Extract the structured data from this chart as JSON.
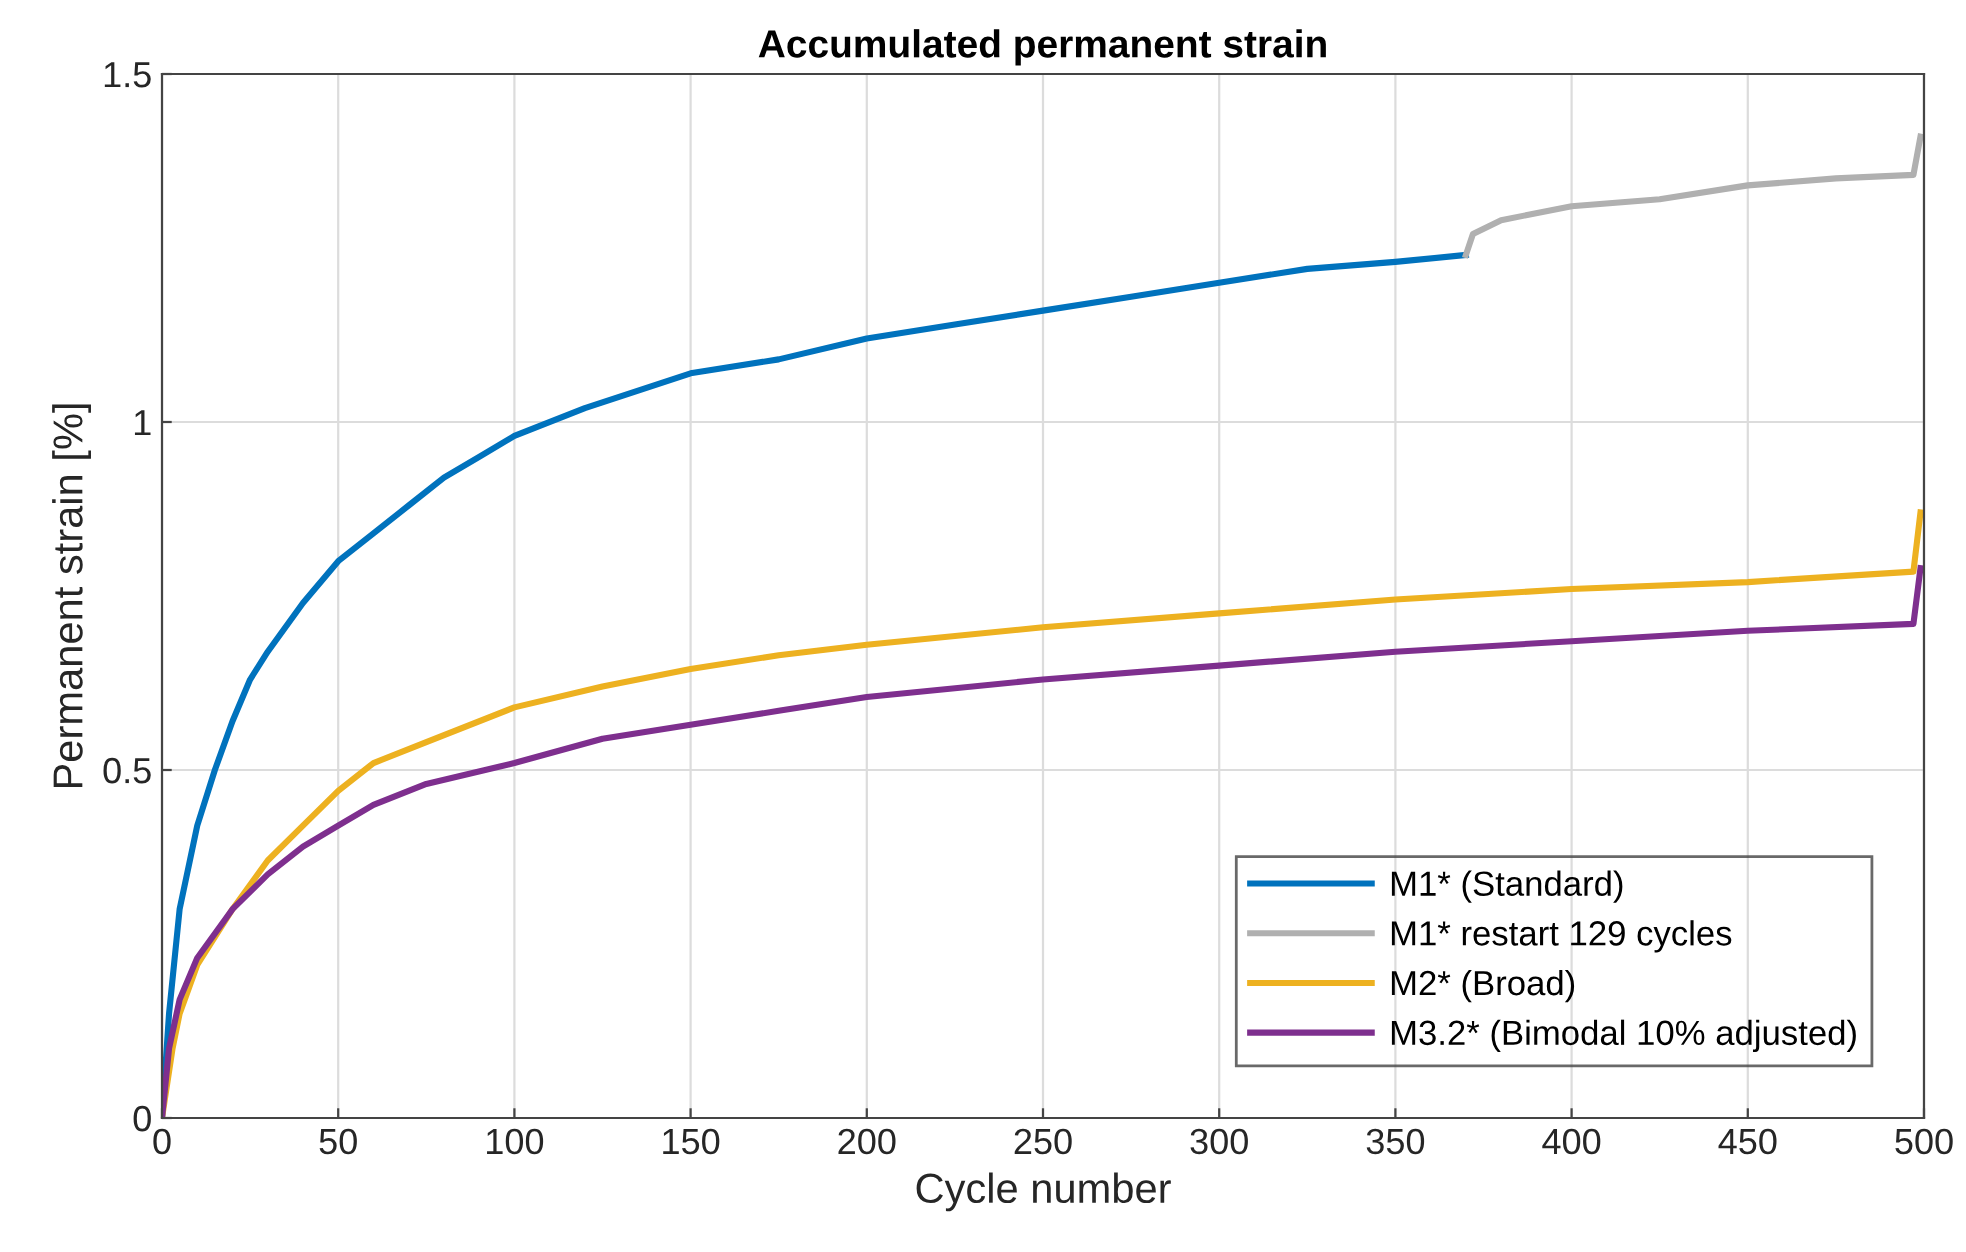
{
  "chart_data": {
    "type": "line",
    "title": "Accumulated permanent strain",
    "xlabel": "Cycle number",
    "ylabel": "Permanent strain [%]",
    "xlim": [
      0,
      500
    ],
    "xticks": [
      0,
      50,
      100,
      150,
      200,
      250,
      300,
      350,
      400,
      450,
      500
    ],
    "ylim": [
      0,
      1.5
    ],
    "yticks": [
      0,
      0.5,
      1,
      1.5
    ],
    "grid": true,
    "legend": "bottom right",
    "series": [
      {
        "name": "M1* (Standard)",
        "color": "#0072bd",
        "x": [
          0,
          2,
          5,
          10,
          15,
          20,
          25,
          30,
          40,
          50,
          60,
          70,
          80,
          90,
          100,
          120,
          150,
          175,
          200,
          225,
          250,
          275,
          300,
          325,
          350,
          370
        ],
        "values": [
          0,
          0.15,
          0.3,
          0.42,
          0.5,
          0.57,
          0.63,
          0.67,
          0.74,
          0.8,
          0.84,
          0.88,
          0.92,
          0.95,
          0.98,
          1.02,
          1.07,
          1.09,
          1.12,
          1.14,
          1.16,
          1.18,
          1.2,
          1.22,
          1.23,
          1.24
        ]
      },
      {
        "name": "M1* restart 129 cycles",
        "color": "#b0b0b0",
        "x": [
          370,
          372,
          380,
          400,
          425,
          450,
          475,
          497,
          499
        ],
        "values": [
          1.24,
          1.27,
          1.29,
          1.31,
          1.32,
          1.34,
          1.35,
          1.355,
          1.41
        ]
      },
      {
        "name": "M2* (Broad)",
        "color": "#edb120",
        "x": [
          0,
          3,
          5,
          10,
          20,
          30,
          40,
          50,
          60,
          75,
          100,
          125,
          150,
          175,
          200,
          250,
          300,
          350,
          400,
          450,
          497,
          499
        ],
        "values": [
          0,
          0.1,
          0.15,
          0.22,
          0.3,
          0.37,
          0.42,
          0.47,
          0.51,
          0.54,
          0.59,
          0.62,
          0.645,
          0.665,
          0.68,
          0.705,
          0.725,
          0.745,
          0.76,
          0.77,
          0.785,
          0.87
        ]
      },
      {
        "name": "M3.2* (Bimodal 10% adjusted)",
        "color": "#7e2f8e",
        "x": [
          0,
          2,
          5,
          10,
          20,
          30,
          40,
          50,
          60,
          75,
          100,
          125,
          150,
          175,
          200,
          250,
          300,
          350,
          400,
          450,
          497,
          499
        ],
        "values": [
          0,
          0.1,
          0.17,
          0.23,
          0.3,
          0.35,
          0.39,
          0.42,
          0.45,
          0.48,
          0.51,
          0.545,
          0.565,
          0.585,
          0.605,
          0.63,
          0.65,
          0.67,
          0.685,
          0.7,
          0.71,
          0.79
        ]
      }
    ]
  }
}
